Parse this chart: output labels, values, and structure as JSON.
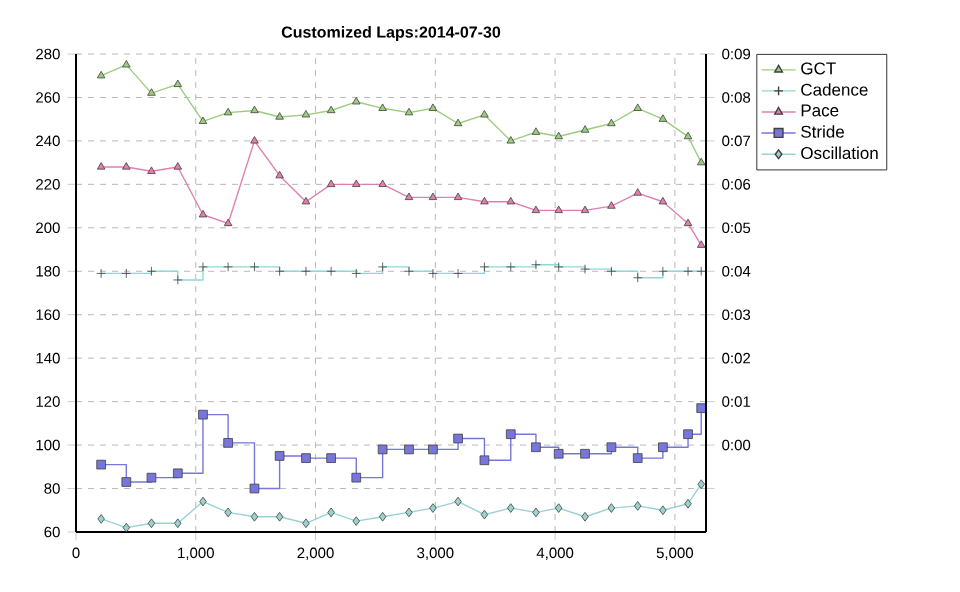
{
  "chart_data": {
    "type": "line",
    "title": "Customized Laps:2014-07-30",
    "x": [
      210,
      420,
      630,
      850,
      1060,
      1270,
      1490,
      1700,
      1920,
      2130,
      2340,
      2560,
      2780,
      2980,
      3190,
      3410,
      3630,
      3840,
      4030,
      4250,
      4470,
      4690,
      4900,
      5110,
      5220
    ],
    "series": [
      {
        "name": "GCT",
        "color": "#9ccc7e",
        "marker": "triangle",
        "values": [
          270,
          275,
          262,
          266,
          249,
          253,
          254,
          251,
          252,
          254,
          258,
          255,
          253,
          255,
          248,
          252,
          240,
          244,
          242,
          245,
          248,
          255,
          250,
          242,
          230
        ]
      },
      {
        "name": "Cadence",
        "type": "step",
        "color": "#8fd8d8",
        "marker": "cross",
        "values": [
          179,
          179,
          180,
          176,
          182,
          182,
          182,
          180,
          180,
          180,
          179,
          182,
          180,
          179,
          179,
          182,
          182,
          183,
          182,
          181,
          180,
          177,
          180,
          180,
          180
        ]
      },
      {
        "name": "Pace",
        "color": "#e27fb0",
        "marker": "triangle",
        "axis": "y2",
        "values": [
          6.4,
          6.4,
          6.3,
          6.4,
          5.3,
          5.1,
          7.0,
          6.2,
          5.6,
          6.0,
          6.0,
          6.0,
          5.7,
          5.7,
          5.7,
          5.6,
          5.6,
          5.4,
          5.4,
          5.4,
          5.5,
          5.8,
          5.6,
          5.1,
          4.6
        ]
      },
      {
        "name": "Stride",
        "type": "step",
        "color": "#7676dc",
        "marker": "square",
        "values": [
          91,
          83,
          85,
          87,
          114,
          101,
          80,
          95,
          94,
          94,
          85,
          98,
          98,
          98,
          103,
          93,
          105,
          99,
          96,
          96,
          99,
          94,
          99,
          105,
          117
        ]
      },
      {
        "name": "Oscillation",
        "color": "#9ad2cf",
        "marker": "diamond",
        "values": [
          66,
          62,
          64,
          64,
          74,
          69,
          67,
          67,
          64,
          69,
          65,
          67,
          69,
          71,
          74,
          68,
          71,
          69,
          71,
          67,
          71,
          72,
          70,
          73,
          82
        ]
      }
    ],
    "xlim": [
      0,
      5260
    ],
    "xticks": [
      0,
      {
        "value": 1000,
        "label": "1,000"
      },
      {
        "value": 2000,
        "label": "2,000"
      },
      {
        "value": 3000,
        "label": "3,000"
      },
      {
        "value": 4000,
        "label": "4,000"
      },
      {
        "value": 5000,
        "label": "5,000"
      }
    ],
    "ylim": [
      60,
      280
    ],
    "yticks": [
      60,
      80,
      100,
      120,
      140,
      160,
      180,
      200,
      220,
      240,
      260,
      280
    ],
    "y2lim": [
      -2,
      9
    ],
    "y2ticks": [
      {
        "value": -1,
        "label": null
      },
      {
        "value": 0,
        "label": "0:00"
      },
      {
        "value": 1,
        "label": "0:01"
      },
      {
        "value": 2,
        "label": "0:02"
      },
      {
        "value": 3,
        "label": "0:03"
      },
      {
        "value": 4,
        "label": "0:04"
      },
      {
        "value": 5,
        "label": "0:05"
      },
      {
        "value": 6,
        "label": "0:06"
      },
      {
        "value": 7,
        "label": "0:07"
      },
      {
        "value": 8,
        "label": "0:08"
      },
      {
        "value": 9,
        "label": "0:09"
      }
    ],
    "grid": true,
    "legend": "right"
  }
}
